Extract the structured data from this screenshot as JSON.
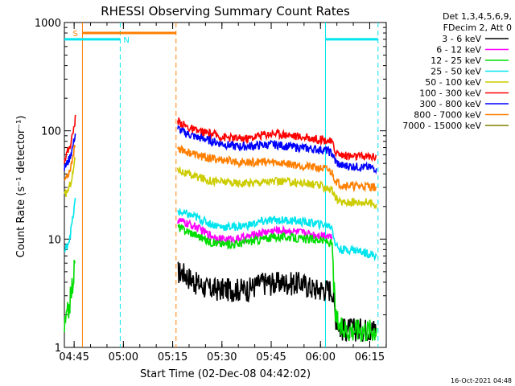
{
  "chart_data": {
    "type": "line",
    "title": "RHESSI Observing Summary Count Rates",
    "xlabel": "Start Time (02-Dec-08 04:42:02)",
    "ylabel": "Count Rate (s⁻¹ detector⁻¹)",
    "y_scale": "log",
    "ylim": [
      1,
      1000
    ],
    "y_ticks": [
      1,
      10,
      100,
      1000
    ],
    "y_tick_labels": [
      "1",
      "10",
      "100",
      "1000"
    ],
    "x_unit": "minutes after 04:42:02",
    "xlim": [
      0,
      98
    ],
    "x_ticks": [
      2.97,
      17.97,
      32.97,
      47.97,
      62.97,
      77.97,
      92.97
    ],
    "x_tick_labels": [
      "04:45",
      "05:00",
      "05:15",
      "05:30",
      "05:45",
      "06:00",
      "06:15"
    ],
    "legend_placement": "right",
    "legend_header": [
      "Det 1,3,4,5,6,9,",
      "FDecim 2, Att 0"
    ],
    "footer_timestamp": "16-Oct-2021 04:48",
    "annotations": [
      {
        "label": "S",
        "color": "#ff7f00",
        "x0": 5.5,
        "x1": 34.0,
        "y": 800
      },
      {
        "label": "N",
        "color": "#00e5ee",
        "x0": 0.0,
        "x1": 17.0,
        "y": 700
      },
      {
        "label": "",
        "color": "#00e5ee",
        "x0": 79.5,
        "x1": 95.5,
        "y": 700
      }
    ],
    "vertical_markers": [
      {
        "color": "#ff7f00",
        "x": 5.5,
        "style": "solid"
      },
      {
        "color": "#00e5ee",
        "x": 17.0,
        "style": "dashed"
      },
      {
        "color": "#ff7f00",
        "x": 34.0,
        "style": "dashed"
      },
      {
        "color": "#00e5ee",
        "x": 79.5,
        "style": "solid"
      },
      {
        "color": "#00e5ee",
        "x": 95.5,
        "style": "dashed"
      }
    ],
    "series": [
      {
        "name": "3 - 6 keV",
        "color": "#000000",
        "points": [
          [
            34.5,
            5
          ],
          [
            36,
            5
          ],
          [
            38,
            4.5
          ],
          [
            40,
            4
          ],
          [
            44,
            3.5
          ],
          [
            48,
            3.5
          ],
          [
            52,
            3.5
          ],
          [
            56,
            3.5
          ],
          [
            60,
            4
          ],
          [
            64,
            4
          ],
          [
            68,
            4
          ],
          [
            72,
            4
          ],
          [
            76,
            3.5
          ],
          [
            80,
            3.5
          ],
          [
            81.5,
            3.5
          ],
          [
            82.5,
            2
          ],
          [
            84,
            1.5
          ],
          [
            86,
            1.5
          ],
          [
            90,
            1.5
          ],
          [
            95,
            1.5
          ]
        ]
      },
      {
        "name": "6 - 12 keV",
        "color": "#ff00ff",
        "points": [
          [
            34.5,
            15
          ],
          [
            37,
            14
          ],
          [
            40,
            13
          ],
          [
            44,
            11
          ],
          [
            48,
            10
          ],
          [
            52,
            10
          ],
          [
            56,
            10.5
          ],
          [
            60,
            11.5
          ],
          [
            64,
            12
          ],
          [
            68,
            12
          ],
          [
            72,
            11.5
          ],
          [
            76,
            11
          ],
          [
            80,
            11
          ],
          [
            81.5,
            10.5
          ]
        ]
      },
      {
        "name": "12 - 25 keV",
        "color": "#00dd00",
        "points": [
          [
            0,
            1.5
          ],
          [
            1.5,
            2.5
          ],
          [
            2.5,
            4
          ],
          [
            3.5,
            7
          ],
          [
            34.5,
            13
          ],
          [
            37,
            12
          ],
          [
            40,
            11
          ],
          [
            44,
            9.5
          ],
          [
            48,
            9
          ],
          [
            52,
            9
          ],
          [
            56,
            9.5
          ],
          [
            60,
            10
          ],
          [
            64,
            10.5
          ],
          [
            68,
            10.5
          ],
          [
            72,
            10
          ],
          [
            76,
            10
          ],
          [
            80,
            9.5
          ],
          [
            81.5,
            9
          ],
          [
            82.5,
            2
          ],
          [
            84,
            1.5
          ],
          [
            86,
            1.5
          ],
          [
            90,
            1.5
          ],
          [
            95,
            1.5
          ]
        ]
      },
      {
        "name": "25 - 50 keV",
        "color": "#00e5ee",
        "points": [
          [
            0,
            7.5
          ],
          [
            1.5,
            10
          ],
          [
            2.5,
            15
          ],
          [
            3.5,
            25
          ],
          [
            34.5,
            18
          ],
          [
            37,
            17
          ],
          [
            40,
            16
          ],
          [
            44,
            14
          ],
          [
            48,
            13
          ],
          [
            52,
            13
          ],
          [
            56,
            13.5
          ],
          [
            60,
            14.5
          ],
          [
            64,
            15
          ],
          [
            68,
            15
          ],
          [
            72,
            14.5
          ],
          [
            76,
            14
          ],
          [
            80,
            13.5
          ],
          [
            81.5,
            13
          ],
          [
            82.5,
            9
          ],
          [
            84,
            8
          ],
          [
            88,
            8
          ],
          [
            92,
            7.5
          ],
          [
            95,
            7
          ]
        ]
      },
      {
        "name": "50 - 100 keV",
        "color": "#cccc00",
        "points": [
          [
            0,
            25
          ],
          [
            1.5,
            30
          ],
          [
            2.5,
            40
          ],
          [
            3.5,
            60
          ],
          [
            34.5,
            45
          ],
          [
            37,
            40
          ],
          [
            40,
            38
          ],
          [
            44,
            35
          ],
          [
            48,
            34
          ],
          [
            52,
            33
          ],
          [
            56,
            33
          ],
          [
            60,
            34
          ],
          [
            64,
            34
          ],
          [
            68,
            34
          ],
          [
            72,
            33
          ],
          [
            76,
            32
          ],
          [
            80,
            30
          ],
          [
            81.5,
            28
          ],
          [
            82.5,
            24
          ],
          [
            84,
            22
          ],
          [
            88,
            22
          ],
          [
            92,
            22
          ],
          [
            95,
            21
          ]
        ]
      },
      {
        "name": "100 - 300 keV",
        "color": "#ff0000",
        "points": [
          [
            0,
            55
          ],
          [
            1.5,
            70
          ],
          [
            2.5,
            90
          ],
          [
            3.5,
            140
          ],
          [
            34.5,
            125
          ],
          [
            37,
            110
          ],
          [
            40,
            100
          ],
          [
            44,
            95
          ],
          [
            48,
            88
          ],
          [
            52,
            85
          ],
          [
            56,
            85
          ],
          [
            60,
            92
          ],
          [
            64,
            95
          ],
          [
            68,
            92
          ],
          [
            72,
            88
          ],
          [
            76,
            85
          ],
          [
            80,
            82
          ],
          [
            81.5,
            78
          ],
          [
            82.5,
            65
          ],
          [
            84,
            60
          ],
          [
            88,
            58
          ],
          [
            92,
            58
          ],
          [
            95,
            58
          ]
        ]
      },
      {
        "name": "300 - 800 keV",
        "color": "#0000ff",
        "points": [
          [
            0,
            45
          ],
          [
            1.5,
            55
          ],
          [
            2.5,
            70
          ],
          [
            3.5,
            100
          ],
          [
            34.5,
            105
          ],
          [
            37,
            95
          ],
          [
            40,
            88
          ],
          [
            44,
            82
          ],
          [
            48,
            76
          ],
          [
            52,
            72
          ],
          [
            56,
            72
          ],
          [
            60,
            74
          ],
          [
            64,
            75
          ],
          [
            68,
            72
          ],
          [
            72,
            70
          ],
          [
            76,
            68
          ],
          [
            80,
            66
          ],
          [
            81.5,
            62
          ],
          [
            82.5,
            52
          ],
          [
            84,
            48
          ],
          [
            88,
            47
          ],
          [
            92,
            46
          ],
          [
            95,
            45
          ]
        ]
      },
      {
        "name": "800 - 7000 keV",
        "color": "#ff7f00",
        "points": [
          [
            0,
            35
          ],
          [
            1.5,
            42
          ],
          [
            2.5,
            55
          ],
          [
            3.5,
            85
          ],
          [
            34.5,
            70
          ],
          [
            37,
            65
          ],
          [
            40,
            60
          ],
          [
            44,
            56
          ],
          [
            48,
            54
          ],
          [
            52,
            52
          ],
          [
            56,
            51
          ],
          [
            60,
            52
          ],
          [
            64,
            51
          ],
          [
            68,
            50
          ],
          [
            72,
            48
          ],
          [
            76,
            46
          ],
          [
            80,
            44
          ],
          [
            81.5,
            41
          ],
          [
            82.5,
            35
          ],
          [
            84,
            32
          ],
          [
            88,
            31
          ],
          [
            92,
            31
          ],
          [
            95,
            30
          ]
        ]
      },
      {
        "name": "7000 - 15000 keV",
        "color": "#808000",
        "points": []
      }
    ]
  }
}
